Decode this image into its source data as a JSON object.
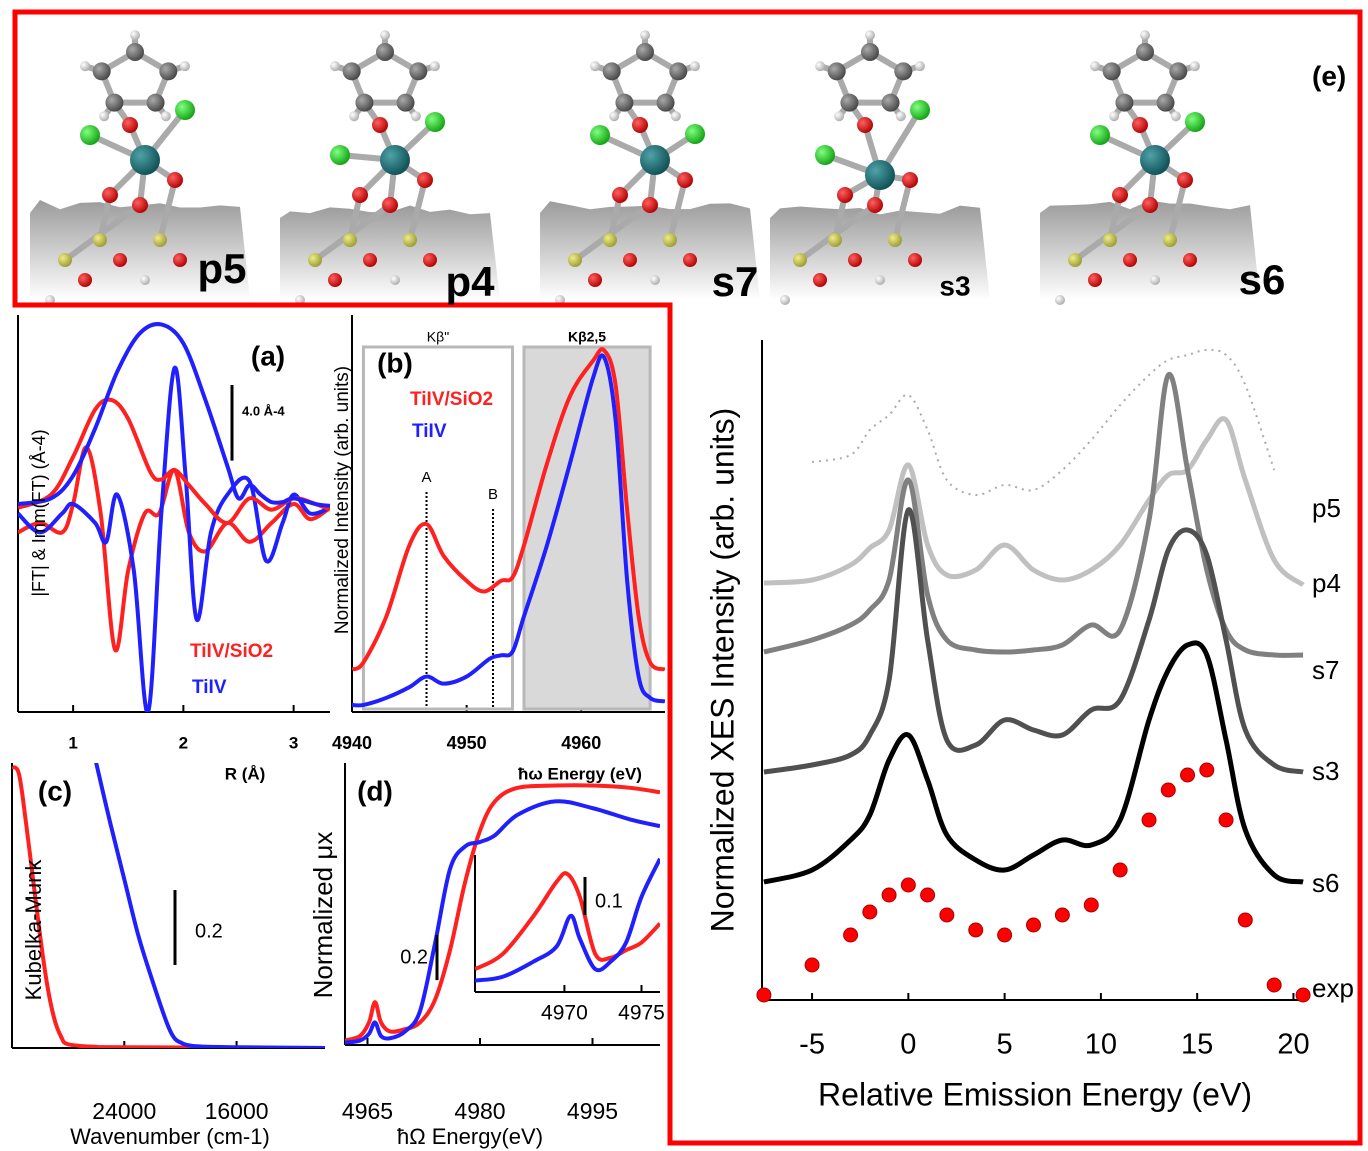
{
  "structures": [
    "p5",
    "p4",
    "s7",
    "s3",
    "s6"
  ],
  "chart_data": [
    {
      "type": "line",
      "panel": "(a)",
      "xlabel": "R (Å)",
      "ylabel": "|FT| & Imm(FT)  (Å-4)",
      "xlim": [
        0.5,
        3.33
      ],
      "xticks": [
        1,
        2,
        3
      ],
      "ylim": [
        -10.5,
        10.5
      ],
      "scale_bar": {
        "value": 4.0,
        "label": "4.0 Å-4"
      },
      "legend": [
        {
          "name": "TiIV/SiO2",
          "color": "#ff2020"
        },
        {
          "name": "TiIV",
          "color": "#2020ff"
        }
      ],
      "series": [
        {
          "color": "#ff2020",
          "x": [
            0.5,
            0.7,
            0.9,
            1.0,
            1.12,
            1.25,
            1.38,
            1.5,
            1.65,
            1.78,
            1.92,
            2.05,
            2.2,
            2.4,
            2.6,
            2.8,
            3.0,
            3.15,
            3.33
          ],
          "values": [
            -1,
            -0.5,
            -1,
            0.5,
            3.5,
            0,
            -7.2,
            -3,
            0,
            0,
            2.3,
            -1,
            -2,
            -0.5,
            -1.5,
            -0.5,
            0.5,
            -0.3,
            0.3
          ]
        },
        {
          "color": "#2020ff",
          "x": [
            0.5,
            0.7,
            0.9,
            1.0,
            1.2,
            1.3,
            1.4,
            1.55,
            1.68,
            1.8,
            1.92,
            2.02,
            2.12,
            2.25,
            2.4,
            2.6,
            2.75,
            2.9,
            3.0,
            3.15,
            3.33
          ],
          "values": [
            0,
            -1,
            0,
            0.5,
            -0.5,
            -1.5,
            1,
            -3,
            -10.5,
            0,
            7.7,
            2,
            -5.6,
            -1,
            1,
            1.7,
            -2.5,
            -0.5,
            1,
            0,
            0.3
          ]
        },
        {
          "color": "#ff2020",
          "x": [
            0.5,
            0.8,
            1.0,
            1.2,
            1.35,
            1.5,
            1.7,
            1.8,
            1.92,
            2.05,
            2.2,
            2.4,
            2.6,
            2.8,
            3.0,
            3.2,
            3.33
          ],
          "values": [
            0.3,
            1,
            3,
            5.5,
            6,
            5,
            2.2,
            1.8,
            2.3,
            1.5,
            0.5,
            -0.5,
            0.8,
            0.2,
            0.8,
            0.5,
            0.2
          ]
        },
        {
          "color": "#2020ff",
          "x": [
            0.5,
            0.8,
            1.0,
            1.2,
            1.4,
            1.6,
            1.8,
            2.0,
            2.2,
            2.4,
            2.5,
            2.6,
            2.7,
            2.8,
            2.9,
            3.0,
            3.2,
            3.33
          ],
          "values": [
            0.5,
            0.8,
            2,
            4.5,
            7.5,
            9.5,
            10,
            9,
            6,
            2.5,
            0.8,
            1.5,
            1.0,
            0.6,
            0.6,
            0.8,
            0.5,
            0.4
          ]
        }
      ]
    },
    {
      "type": "line",
      "panel": "(b)",
      "xlabel": "ħω Energy (eV)",
      "ylabel": "Normalized Intensity (arb. units)",
      "xlim": [
        4940,
        4967.3
      ],
      "xticks": [
        4940,
        4950,
        4960
      ],
      "ylim": [
        -0.02,
        1.1
      ],
      "regions": [
        {
          "label": "Kβ\"",
          "xlim": [
            4941,
            4954
          ],
          "style": "box"
        },
        {
          "label": "Kβ2,5",
          "xlim": [
            4955,
            4966
          ],
          "style": "shaded"
        }
      ],
      "annotations": [
        {
          "text": "A",
          "x": 4946.5
        },
        {
          "text": "B",
          "x": 4952.3
        }
      ],
      "legend": [
        {
          "name": "TiIV/SiO2",
          "color": "#ff2020"
        },
        {
          "name": "TiIV",
          "color": "#2020ff"
        }
      ],
      "series": [
        {
          "color": "#ff2020",
          "x": [
            4940,
            4941,
            4943,
            4945,
            4946.5,
            4948,
            4950,
            4951.5,
            4953,
            4954,
            4955,
            4957,
            4959,
            4961,
            4962,
            4963,
            4964,
            4965,
            4966,
            4967.3
          ],
          "values": [
            0.1,
            0.12,
            0.25,
            0.45,
            0.51,
            0.42,
            0.35,
            0.32,
            0.35,
            0.36,
            0.45,
            0.68,
            0.87,
            0.97,
            1.0,
            0.9,
            0.55,
            0.25,
            0.12,
            0.1
          ]
        },
        {
          "color": "#2020ff",
          "x": [
            4940,
            4941,
            4943,
            4945,
            4946.5,
            4948,
            4950,
            4952,
            4953,
            4954,
            4955,
            4957,
            4959,
            4961,
            4962,
            4963,
            4964,
            4965,
            4966,
            4967.3
          ],
          "values": [
            0.0,
            0.0,
            0.02,
            0.05,
            0.08,
            0.06,
            0.08,
            0.13,
            0.14,
            0.15,
            0.25,
            0.45,
            0.68,
            0.92,
            0.98,
            0.8,
            0.35,
            0.08,
            0.02,
            0.01
          ]
        }
      ]
    },
    {
      "type": "line",
      "panel": "(c)",
      "xlabel": "Wavenumber (cm-1)",
      "ylabel": "Kubelka-Munk",
      "xlim": [
        32000,
        9700
      ],
      "xticks": [
        24000,
        16000
      ],
      "ylim": [
        0,
        0.76
      ],
      "scale_bar": 0.2,
      "series": [
        {
          "color": "#ff2020",
          "x": [
            32000,
            31500,
            31000,
            30500,
            30000,
            29500,
            29000,
            28500,
            28000,
            26000,
            24000,
            9700
          ],
          "values": [
            0.75,
            0.73,
            0.6,
            0.45,
            0.3,
            0.17,
            0.08,
            0.03,
            0.01,
            0.003,
            0.002,
            0
          ]
        },
        {
          "color": "#2020ff",
          "x": [
            26200,
            26000,
            25000,
            24000,
            23000,
            22000,
            21000,
            20500,
            20000,
            19000,
            16000,
            9700
          ],
          "values": [
            0.8,
            0.76,
            0.6,
            0.45,
            0.3,
            0.18,
            0.07,
            0.03,
            0.015,
            0.005,
            0.002,
            0
          ]
        }
      ]
    },
    {
      "type": "line",
      "panel": "(d)",
      "xlabel": "ħΩ Energy(eV)",
      "ylabel": "Normalized μx",
      "xlim": [
        4962,
        5004
      ],
      "xticks": [
        4965,
        4980,
        4995
      ],
      "ylim": [
        0,
        1.25
      ],
      "scale_bar": 0.2,
      "series": [
        {
          "color": "#ff2020",
          "x": [
            4962,
            4964,
            4965.2,
            4966,
            4966.8,
            4968,
            4970,
            4972,
            4974,
            4976,
            4978,
            4980,
            4982,
            4985,
            4990,
            4995,
            5000,
            5004
          ],
          "values": [
            0.02,
            0.04,
            0.1,
            0.19,
            0.1,
            0.06,
            0.07,
            0.1,
            0.2,
            0.42,
            0.72,
            0.95,
            1.08,
            1.14,
            1.15,
            1.15,
            1.14,
            1.12
          ]
        },
        {
          "color": "#2020ff",
          "x": [
            4962,
            4964,
            4965.2,
            4966,
            4966.8,
            4968,
            4970,
            4972,
            4974,
            4976,
            4978,
            4980,
            4982,
            4985,
            4990,
            4995,
            5000,
            5004
          ],
          "values": [
            0.01,
            0.02,
            0.05,
            0.1,
            0.04,
            0.03,
            0.06,
            0.15,
            0.45,
            0.78,
            0.88,
            0.9,
            0.93,
            1.02,
            1.08,
            1.05,
            1.0,
            0.97
          ]
        }
      ],
      "inset": {
        "xlim": [
          4964.2,
          4976.2
        ],
        "xticks": [
          4970,
          4975
        ],
        "ylim": [
          0,
          0.36
        ],
        "scale_bar": 0.1,
        "series": [
          {
            "color": "#ff2020",
            "x": [
              4964.2,
              4966,
              4968,
              4969.5,
              4970.2,
              4971,
              4972,
              4973,
              4974,
              4975,
              4976.2
            ],
            "values": [
              0.06,
              0.1,
              0.2,
              0.29,
              0.31,
              0.25,
              0.1,
              0.09,
              0.11,
              0.13,
              0.18
            ]
          },
          {
            "color": "#2020ff",
            "x": [
              4964.2,
              4966,
              4968,
              4969.5,
              4970.4,
              4971,
              4972,
              4973,
              4974,
              4975,
              4976.2
            ],
            "values": [
              0.03,
              0.04,
              0.08,
              0.12,
              0.2,
              0.14,
              0.06,
              0.08,
              0.13,
              0.25,
              0.35
            ]
          }
        ]
      }
    },
    {
      "type": "line",
      "panel": "(e)",
      "xlabel": "Relative Emission Energy (eV)",
      "ylabel": "Normalized XES Intensity (arb. units)",
      "xlim": [
        -7.6,
        20.6
      ],
      "xticks": [
        -5,
        0,
        5,
        10,
        15,
        20
      ],
      "ylim": [
        0,
        6.6
      ],
      "x": [
        -7.5,
        -5,
        -3,
        -2,
        -1,
        0,
        1,
        2,
        3.5,
        5,
        6.5,
        8,
        9.5,
        11,
        12.5,
        13.5,
        14.5,
        15.5,
        16.5,
        17.5,
        19,
        20.5
      ],
      "series": [
        {
          "name": "p5",
          "color": "#aaaaaa",
          "style": "dotted",
          "values": [
            null,
            5.38,
            5.45,
            5.7,
            5.85,
            6.05,
            5.7,
            5.2,
            5.05,
            5.15,
            5.1,
            5.3,
            5.6,
            5.95,
            6.25,
            6.4,
            6.45,
            6.5,
            6.45,
            6.15,
            5.3,
            null
          ]
        },
        {
          "name": "p4",
          "color": "#c0c0c0",
          "values": [
            4.17,
            4.2,
            4.35,
            4.52,
            4.7,
            5.35,
            4.55,
            4.25,
            4.3,
            4.55,
            4.3,
            4.2,
            4.3,
            4.55,
            5.0,
            5.25,
            5.3,
            5.6,
            5.8,
            5.2,
            4.4,
            4.15
          ]
        },
        {
          "name": "s7",
          "color": "#808080",
          "values": [
            3.48,
            3.6,
            3.75,
            3.9,
            4.2,
            5.2,
            4.05,
            3.6,
            3.5,
            3.48,
            3.5,
            3.55,
            3.75,
            3.7,
            4.8,
            6.25,
            5.3,
            4.3,
            3.7,
            3.5,
            3.45,
            3.45
          ]
        },
        {
          "name": "s3",
          "color": "#505050",
          "values": [
            2.28,
            2.35,
            2.45,
            2.65,
            3.2,
            4.9,
            3.6,
            2.6,
            2.55,
            2.8,
            2.7,
            2.65,
            2.9,
            3.0,
            3.8,
            4.5,
            4.7,
            4.45,
            3.6,
            2.7,
            2.35,
            2.28
          ]
        },
        {
          "name": "s6",
          "color": "#000000",
          "values": [
            1.18,
            1.3,
            1.6,
            1.85,
            2.4,
            2.65,
            2.2,
            1.65,
            1.4,
            1.3,
            1.45,
            1.6,
            1.55,
            1.8,
            2.8,
            3.3,
            3.55,
            3.45,
            2.6,
            1.7,
            1.25,
            1.18
          ]
        },
        {
          "name": "exp",
          "color": "#ff0000",
          "marker": "circle",
          "values": [
            0.05,
            0.35,
            0.65,
            0.88,
            1.05,
            1.15,
            1.05,
            0.85,
            0.7,
            0.65,
            0.75,
            0.85,
            0.95,
            1.3,
            1.8,
            2.1,
            2.25,
            2.3,
            1.8,
            0.8,
            0.15,
            0.05
          ]
        }
      ]
    }
  ]
}
